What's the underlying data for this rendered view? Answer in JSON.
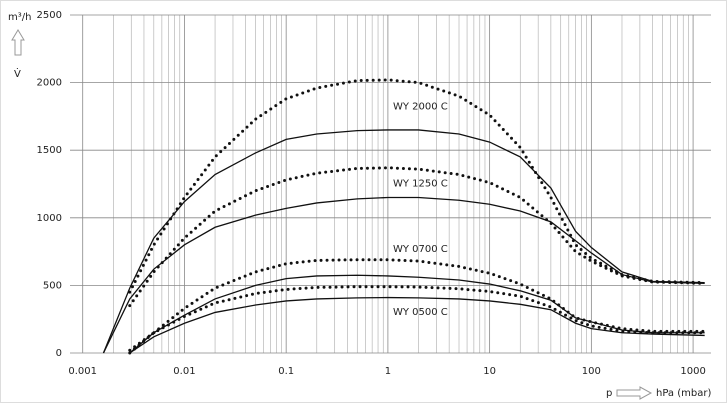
{
  "chart_data": {
    "type": "line",
    "xscale": "log",
    "grid": true,
    "y_label": "m³/h",
    "y_symbol": "V̇",
    "x_symbol": "p",
    "x_label": "hPa (mbar)",
    "xlim": [
      0.00075,
      1500
    ],
    "ylim": [
      0,
      2500
    ],
    "xticks": [
      0.001,
      0.01,
      0.1,
      1,
      10,
      100,
      1000
    ],
    "xminorticks": [
      0.002,
      0.003,
      0.004,
      0.005,
      0.006,
      0.007,
      0.008,
      0.009,
      0.02,
      0.03,
      0.04,
      0.05,
      0.06,
      0.07,
      0.08,
      0.09,
      0.2,
      0.3,
      0.4,
      0.5,
      0.6,
      0.7,
      0.8,
      0.9,
      2,
      3,
      4,
      5,
      6,
      7,
      8,
      9,
      20,
      30,
      40,
      50,
      60,
      70,
      80,
      90,
      200,
      300,
      400,
      500,
      600,
      700,
      800,
      900
    ],
    "yticks": [
      0,
      500,
      1000,
      1500,
      2000,
      2500
    ],
    "x": [
      0.0016,
      0.0029,
      0.005,
      0.01,
      0.02,
      0.05,
      0.1,
      0.2,
      0.5,
      1,
      2,
      5,
      10,
      20,
      40,
      70,
      100,
      200,
      400,
      1300
    ],
    "series": [
      {
        "name": "WY 2000 C",
        "color": "#111111",
        "values": [
          0,
          480,
          850,
          1120,
          1320,
          1480,
          1580,
          1620,
          1645,
          1650,
          1650,
          1620,
          1560,
          1450,
          1220,
          900,
          780,
          600,
          530,
          520
        ],
        "dotted_values": [
          null,
          450,
          800,
          1150,
          1450,
          1730,
          1880,
          1960,
          2015,
          2020,
          2000,
          1900,
          1760,
          1520,
          1150,
          800,
          700,
          580,
          530,
          520
        ]
      },
      {
        "name": "WY 1250 C",
        "color": "#111111",
        "values": [
          0,
          400,
          620,
          800,
          930,
          1020,
          1070,
          1110,
          1140,
          1150,
          1150,
          1130,
          1100,
          1050,
          970,
          830,
          740,
          580,
          525,
          515
        ],
        "dotted_values": [
          null,
          350,
          600,
          850,
          1050,
          1200,
          1280,
          1330,
          1365,
          1370,
          1360,
          1320,
          1260,
          1150,
          960,
          750,
          680,
          570,
          525,
          515
        ]
      },
      {
        "name": "WY 0700 C",
        "color": "#111111",
        "values": [
          null,
          0,
          150,
          280,
          400,
          500,
          550,
          570,
          575,
          570,
          560,
          540,
          510,
          460,
          390,
          260,
          230,
          170,
          150,
          150
        ],
        "dotted_values": [
          null,
          20,
          150,
          330,
          480,
          600,
          660,
          685,
          690,
          690,
          680,
          640,
          590,
          510,
          400,
          260,
          230,
          180,
          160,
          160
        ]
      },
      {
        "name": "WY 0500 C",
        "color": "#111111",
        "values": [
          null,
          0,
          120,
          220,
          300,
          355,
          385,
          400,
          408,
          410,
          408,
          400,
          385,
          360,
          320,
          220,
          180,
          150,
          140,
          130
        ],
        "dotted_values": [
          null,
          0,
          150,
          270,
          370,
          440,
          470,
          485,
          490,
          490,
          488,
          475,
          455,
          420,
          340,
          240,
          200,
          160,
          150,
          150
        ]
      }
    ]
  }
}
